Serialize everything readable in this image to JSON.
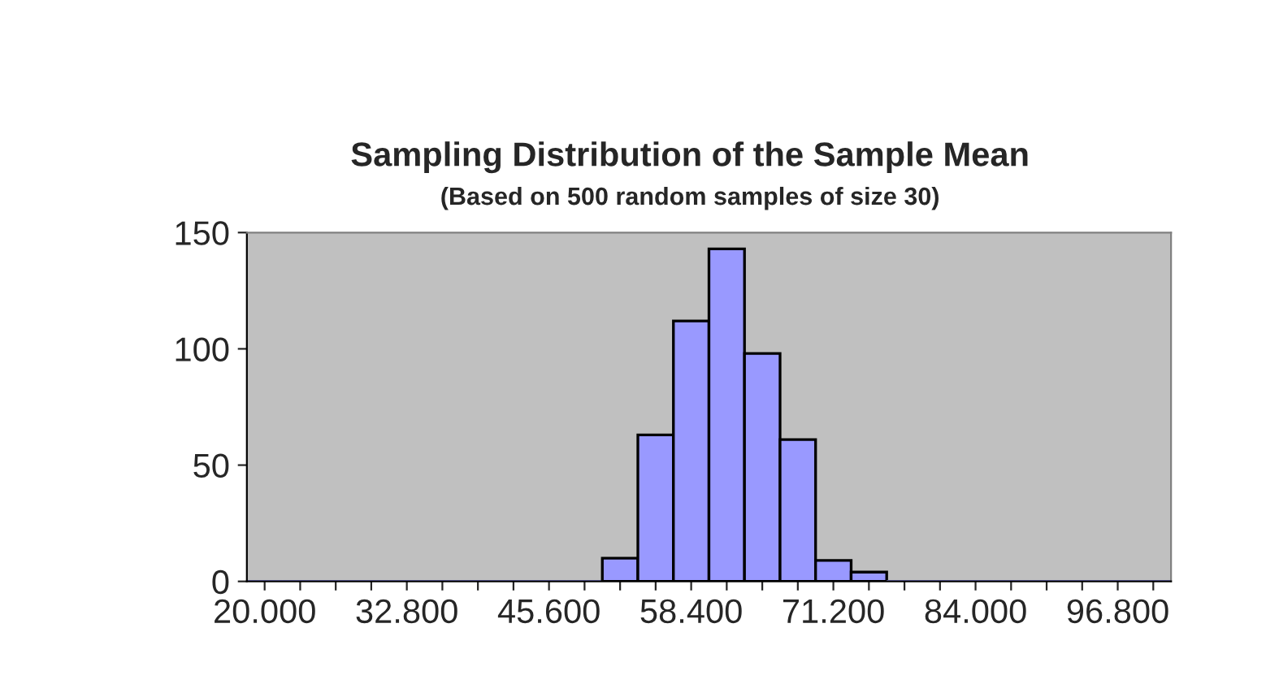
{
  "chart_data": {
    "type": "bar",
    "title": "Sampling Distribution of the Sample Mean",
    "subtitle": "(Based on 500 random samples of size 30)",
    "categories": [
      "20.000",
      null,
      null,
      null,
      "32.800",
      null,
      null,
      null,
      "45.600",
      null,
      null,
      null,
      "58.400",
      null,
      null,
      null,
      "71.200",
      null,
      null,
      null,
      "84.000",
      null,
      null,
      null,
      "96.800",
      null
    ],
    "values": [
      0,
      0,
      0,
      0,
      0,
      0,
      0,
      0,
      0,
      0,
      10,
      63,
      112,
      143,
      98,
      61,
      9,
      4,
      0,
      0,
      0,
      0,
      0,
      0,
      0,
      0
    ],
    "color": "#9999ff",
    "ylim": [
      0,
      150
    ],
    "yticks": [
      0,
      50,
      100,
      150
    ],
    "grid": false,
    "legend": false
  }
}
